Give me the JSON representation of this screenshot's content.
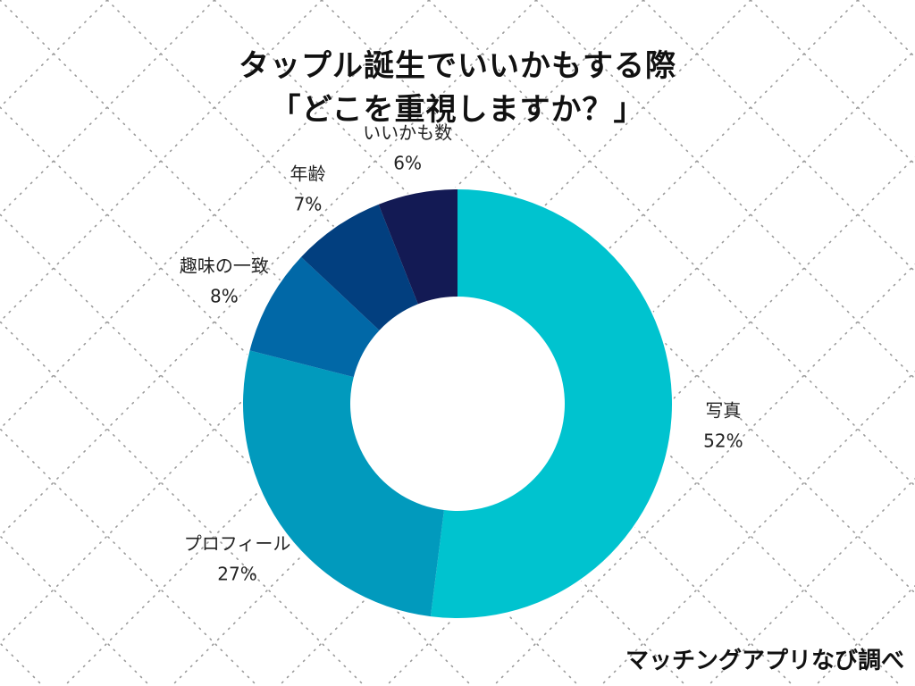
{
  "title": {
    "line1": "タップル誕生でいいかもする際",
    "line2": "「どこを重視しますか？」"
  },
  "credit": "マッチングアプリなび調べ",
  "chart_data": {
    "type": "pie",
    "title": "タップル誕生でいいかもする際「どこを重視しますか？」",
    "donut": true,
    "unit": "%",
    "categories": [
      "写真",
      "プロフィール",
      "趣味の一致",
      "年齢",
      "いいかも数"
    ],
    "values": [
      52,
      27,
      8,
      7,
      6
    ],
    "value_labels": [
      "52%",
      "27%",
      "8%",
      "7%",
      "6%"
    ],
    "colors": [
      "#00c3cf",
      "#019abd",
      "#0168a7",
      "#023f7f",
      "#131a54"
    ],
    "start_angle": "12 o'clock",
    "direction": "clockwise"
  }
}
